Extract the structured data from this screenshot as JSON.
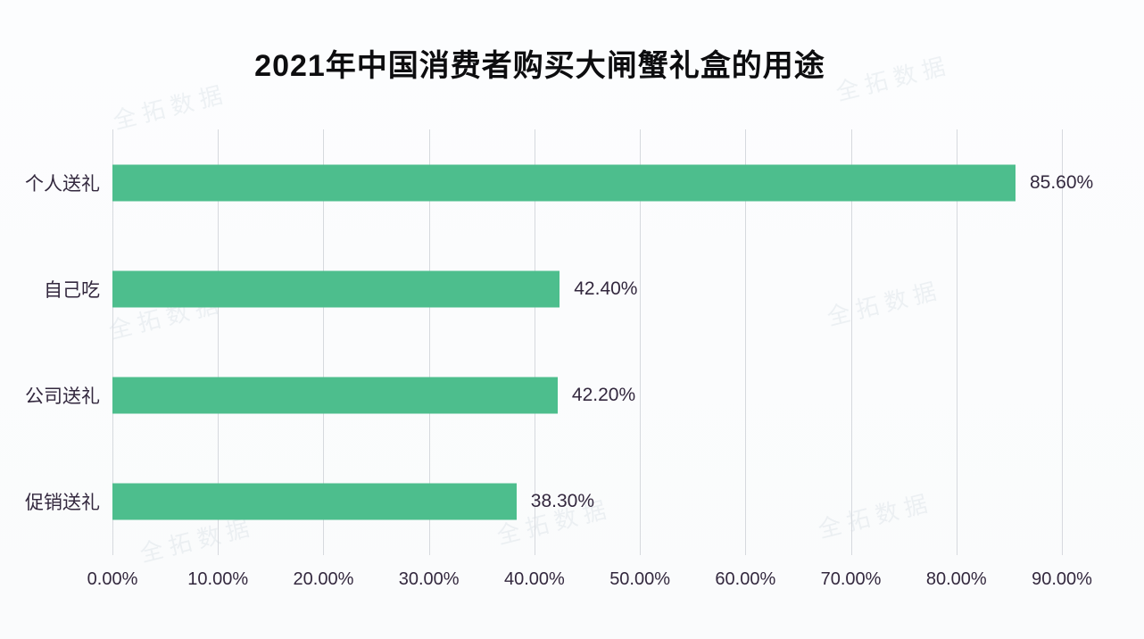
{
  "watermark": {
    "text": "全拓数据"
  },
  "chart_data": {
    "type": "bar",
    "orientation": "horizontal",
    "title": "2021年中国消费者购买大闸蟹礼盒的用途",
    "categories": [
      "个人送礼",
      "自己吃",
      "公司送礼",
      "促销送礼"
    ],
    "values": [
      85.6,
      42.4,
      42.2,
      38.3
    ],
    "value_labels": [
      "85.60%",
      "42.40%",
      "42.20%",
      "38.30%"
    ],
    "x_ticks": [
      "0.00%",
      "10.00%",
      "20.00%",
      "30.00%",
      "40.00%",
      "50.00%",
      "60.00%",
      "70.00%",
      "80.00%",
      "90.00%"
    ],
    "xlabel": "",
    "ylabel": "",
    "xlim": [
      0,
      90
    ],
    "grid": true,
    "legend": null,
    "bar_color": "#4dbe8d",
    "gridline_color": "#d6d9de",
    "text_color": "#33283e"
  }
}
